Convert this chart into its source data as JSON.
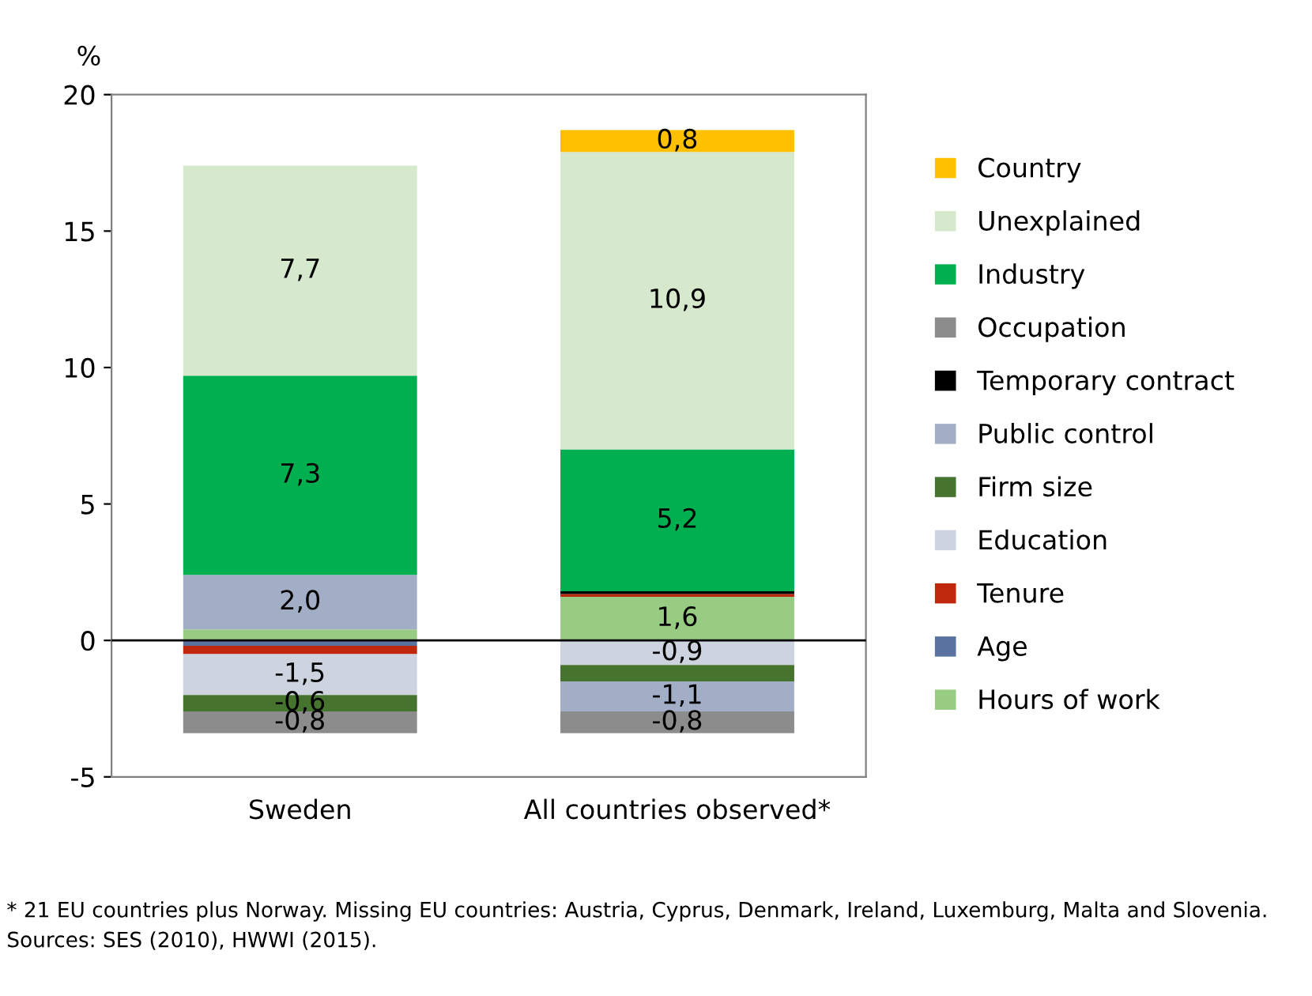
{
  "chart_data": {
    "type": "bar",
    "stacked": true,
    "ylabel": "%",
    "categories": [
      "Sweden",
      "All countries observed*"
    ],
    "ylim": [
      -5,
      20
    ],
    "yticks": [
      -5,
      0,
      5,
      10,
      15,
      20
    ],
    "grid": false,
    "legend": "right",
    "ref_lines": [
      {
        "axis": "y",
        "value": 0,
        "color": "#000000"
      }
    ],
    "series": [
      {
        "name": "Hours of work",
        "color": "#98cc82",
        "values": [
          0.4,
          1.6
        ],
        "value_labels": [
          null,
          "1,6"
        ]
      },
      {
        "name": "Age",
        "color": "#5a72a0",
        "values": [
          -0.2,
          null
        ],
        "value_labels": [
          null,
          null
        ]
      },
      {
        "name": "Tenure",
        "color": "#c0280e",
        "values": [
          -0.3,
          0.1
        ],
        "value_labels": [
          null,
          null
        ]
      },
      {
        "name": "Education",
        "color": "#cdd3df",
        "values": [
          -1.5,
          -0.9
        ],
        "value_labels": [
          "-1,5",
          "-0,9"
        ]
      },
      {
        "name": "Firm size",
        "color": "#46742f",
        "values": [
          -0.6,
          -0.6
        ],
        "value_labels": [
          "-0,6",
          null
        ]
      },
      {
        "name": "Public control",
        "color": "#a2adc6",
        "values": [
          2.0,
          -1.1
        ],
        "value_labels": [
          "2,0",
          "-1,1"
        ]
      },
      {
        "name": "Temporary contract",
        "color": "#000000",
        "values": [
          null,
          0.1
        ],
        "value_labels": [
          null,
          null
        ]
      },
      {
        "name": "Occupation",
        "color": "#8c8c8c",
        "values": [
          -0.8,
          -0.8
        ],
        "value_labels": [
          "-0,8",
          "-0,8"
        ]
      },
      {
        "name": "Industry",
        "color": "#00b050",
        "values": [
          7.3,
          5.2
        ],
        "value_labels": [
          "7,3",
          "5,2"
        ]
      },
      {
        "name": "Unexplained",
        "color": "#d6e9cd",
        "values": [
          7.7,
          10.9
        ],
        "value_labels": [
          "7,7",
          "10,9"
        ]
      },
      {
        "name": "Country",
        "color": "#ffc000",
        "values": [
          null,
          0.8
        ],
        "value_labels": [
          null,
          "0,8"
        ]
      }
    ],
    "annotations": [
      "* 21 EU countries plus Norway. Missing EU countries: Austria, Cyprus, Denmark, Ireland, Luxemburg, Malta and Slovenia.",
      "Sources: SES (2010), HWWI (2015)."
    ]
  }
}
